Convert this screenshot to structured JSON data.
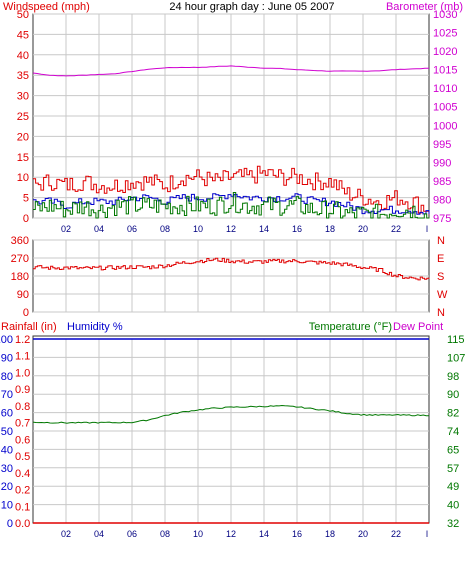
{
  "colors": {
    "wind": "#e00000",
    "gust": "#0000cc",
    "wind_green": "#007700",
    "barometer": "#d000d0",
    "direction": "#e00000",
    "humidity": "#0000cc",
    "temperature": "#007700",
    "dewpoint": "#cc00cc",
    "rain": "#e00000",
    "grid": "#c8c8c8",
    "border": "#333333"
  },
  "chart_data": [
    {
      "type": "line",
      "title": "24 hour graph day : June 05 2007",
      "ylabel_left": "Windspeed (mph)",
      "ylabel_right": "Barometer (mb)",
      "x_ticks": [
        "02",
        "04",
        "06",
        "08",
        "10",
        "12",
        "14",
        "16",
        "18",
        "20",
        "22"
      ],
      "ylim_left": [
        0,
        50
      ],
      "y_ticks_left": [
        "0",
        "5",
        "10",
        "15",
        "20",
        "25",
        "30",
        "35",
        "40",
        "45",
        "50"
      ],
      "ylim_right": [
        975,
        1030
      ],
      "y_ticks_right": [
        "975",
        "980",
        "985",
        "990",
        "995",
        "1000",
        "1005",
        "1010",
        "1015",
        "1020",
        "1025",
        "1030"
      ],
      "xlim": [
        0,
        24
      ],
      "series": [
        {
          "key": "barometer",
          "axis": "right",
          "x": [
            0,
            1,
            2,
            3,
            4,
            5,
            6,
            7,
            8,
            9,
            10,
            11,
            12,
            13,
            14,
            15,
            16,
            17,
            18,
            19,
            20,
            21,
            22,
            23,
            24
          ],
          "values": [
            1014.1,
            1013.5,
            1013.3,
            1013.5,
            1013.7,
            1013.9,
            1014.5,
            1015.1,
            1015.5,
            1015.6,
            1015.6,
            1015.8,
            1016.0,
            1015.7,
            1015.4,
            1015.3,
            1015.0,
            1014.8,
            1014.6,
            1014.6,
            1014.6,
            1014.7,
            1015.0,
            1015.2,
            1015.4
          ]
        },
        {
          "key": "wind",
          "axis": "left",
          "x": [
            0,
            1,
            2,
            3,
            4,
            5,
            6,
            7,
            8,
            9,
            10,
            11,
            12,
            13,
            14,
            15,
            16,
            17,
            18,
            19,
            20,
            21,
            22,
            23,
            24
          ],
          "values": [
            8,
            9,
            8,
            9,
            8,
            8,
            9,
            9,
            8,
            10,
            10,
            9,
            10,
            10,
            11,
            10,
            10,
            9,
            9,
            6,
            5,
            4,
            5,
            4,
            2
          ]
        },
        {
          "key": "gust",
          "axis": "left",
          "x": [
            0,
            1,
            2,
            3,
            4,
            5,
            6,
            7,
            8,
            9,
            10,
            11,
            12,
            13,
            14,
            15,
            16,
            17,
            18,
            19,
            20,
            21,
            22,
            23,
            24
          ],
          "values": [
            4,
            4,
            3,
            4,
            4,
            4,
            5,
            5,
            4,
            5,
            5,
            5,
            6,
            5,
            5,
            5,
            5,
            4,
            4,
            3,
            2,
            2,
            2,
            2,
            1
          ]
        },
        {
          "key": "wind_green",
          "axis": "left",
          "x": [
            0,
            1,
            2,
            3,
            4,
            5,
            6,
            7,
            8,
            9,
            10,
            11,
            12,
            13,
            14,
            15,
            16,
            17,
            18,
            19,
            20,
            21,
            22,
            23,
            24
          ],
          "values": [
            2,
            3,
            2,
            3,
            2,
            3,
            3,
            3,
            3,
            3,
            3,
            3,
            4,
            3,
            3,
            3,
            3,
            2,
            2,
            1,
            1,
            1,
            2,
            2,
            0
          ]
        }
      ]
    },
    {
      "type": "line",
      "ylabel_right_letters": [
        "N",
        "W",
        "S",
        "E",
        "N"
      ],
      "ylim_left": [
        0,
        360
      ],
      "y_ticks_left": [
        "0",
        "90",
        "180",
        "270",
        "360"
      ],
      "xlim": [
        0,
        24
      ],
      "series": [
        {
          "key": "direction",
          "axis": "left",
          "x": [
            0,
            1,
            2,
            3,
            4,
            5,
            6,
            7,
            8,
            9,
            10,
            11,
            12,
            13,
            14,
            15,
            16,
            17,
            18,
            19,
            20,
            21,
            22,
            23,
            24
          ],
          "values": [
            225,
            220,
            222,
            218,
            220,
            222,
            225,
            224,
            232,
            245,
            255,
            262,
            255,
            250,
            252,
            255,
            255,
            248,
            245,
            236,
            222,
            210,
            180,
            170,
            168
          ]
        }
      ]
    },
    {
      "type": "line",
      "ylabel_rain": "Rainfall (in)",
      "ylabel_humidity": "Humidity %",
      "ylabel_temperature": "Temperature (°F)",
      "ylabel_dewpoint": "Dew Point",
      "x_ticks": [
        "02",
        "04",
        "06",
        "08",
        "10",
        "12",
        "14",
        "16",
        "18",
        "20",
        "22"
      ],
      "ylim_humidity": [
        0,
        100
      ],
      "y_ticks_humidity": [
        "0",
        "10",
        "20",
        "30",
        "40",
        "50",
        "60",
        "70",
        "80",
        "90",
        "100"
      ],
      "ylim_rain": [
        0,
        1.2
      ],
      "y_ticks_rain": [
        "0.0",
        "0.1",
        "0.2",
        "0.4",
        "0.5",
        "0.6",
        "0.7",
        "0.8",
        "0.9",
        "1.0",
        "1.1",
        "1.2"
      ],
      "ylim_temperature": [
        32,
        115
      ],
      "y_ticks_temperature": [
        "32",
        "40",
        "49",
        "57",
        "65",
        "74",
        "82",
        "90",
        "98",
        "107",
        "115"
      ],
      "xlim": [
        0,
        24
      ],
      "series": [
        {
          "key": "humidity",
          "axis": "humidity",
          "x": [
            0,
            24
          ],
          "values": [
            100,
            100
          ]
        },
        {
          "key": "rain",
          "axis": "rain",
          "x": [
            0,
            24
          ],
          "values": [
            0,
            0
          ]
        },
        {
          "key": "temperature",
          "axis": "temperature",
          "x": [
            0,
            1,
            2,
            3,
            4,
            5,
            6,
            7,
            8,
            9,
            10,
            11,
            12,
            13,
            14,
            15,
            16,
            17,
            18,
            19,
            20,
            21,
            22,
            23,
            24
          ],
          "values": [
            77.5,
            77.3,
            77.2,
            77.2,
            77.3,
            77.3,
            77.4,
            78.5,
            80.5,
            82.0,
            83.0,
            83.8,
            84.2,
            84.4,
            84.6,
            84.8,
            84.4,
            83.5,
            82.6,
            81.5,
            80.8,
            80.7,
            80.7,
            80.6,
            80.6
          ]
        }
      ]
    }
  ]
}
